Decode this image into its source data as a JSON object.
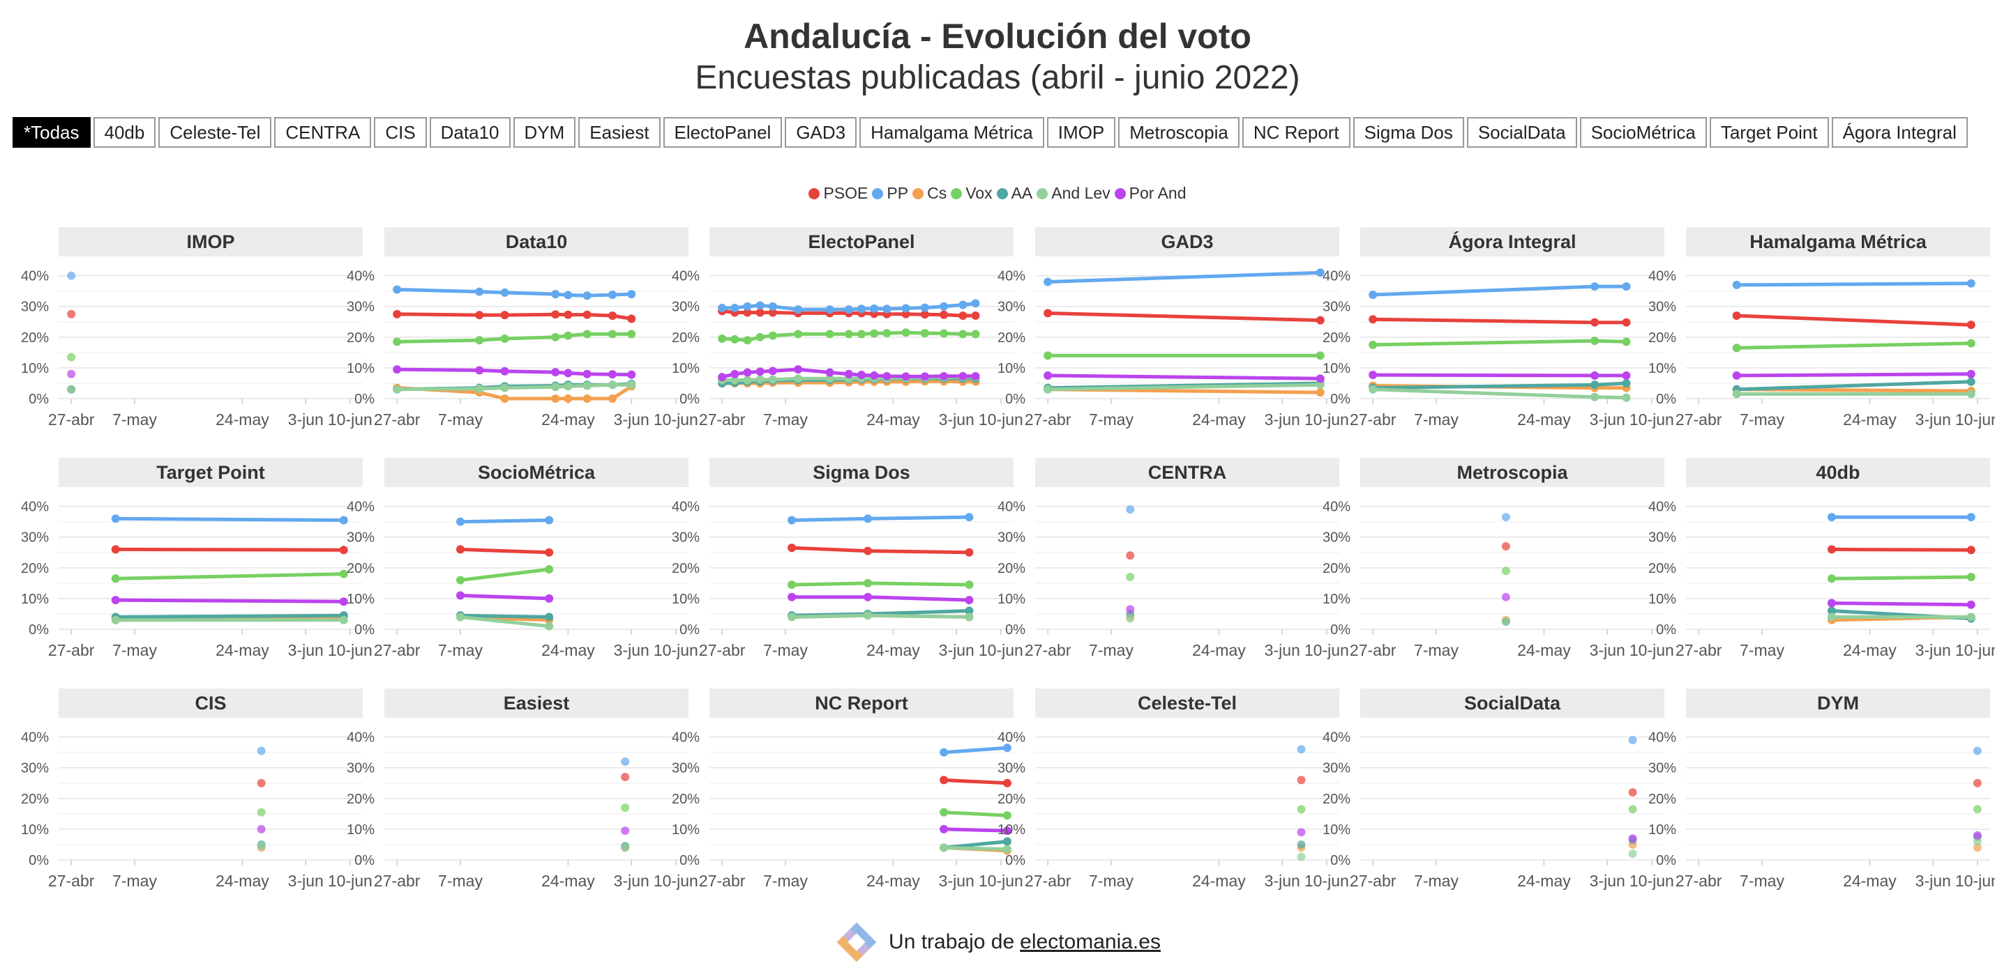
{
  "header": {
    "title": "Andalucía - Evolución del voto",
    "subtitle": "Encuestas publicadas (abril - junio 2022)"
  },
  "filters": [
    "*Todas",
    "40db",
    "Celeste-Tel",
    "CENTRA",
    "CIS",
    "Data10",
    "DYM",
    "Easiest",
    "ElectoPanel",
    "GAD3",
    "Hamalgama Métrica",
    "IMOP",
    "Metroscopia",
    "NC Report",
    "Sigma Dos",
    "SocialData",
    "SocioMétrica",
    "Target Point",
    "Ágora Integral"
  ],
  "active_filter": "*Todas",
  "footer": {
    "text": "Un trabajo de",
    "link": "electomania.es"
  },
  "chart_data": {
    "type": "line",
    "facets": "small multiples, 6 columns × 3 rows",
    "grid": true,
    "legend_position": "top-center",
    "x_ticks": [
      "27-abr",
      "7-may",
      "24-may",
      "3-jun",
      "10-jun"
    ],
    "x_tick_days": [
      0,
      10,
      27,
      37,
      44
    ],
    "y_ticks": [
      "0%",
      "10%",
      "20%",
      "30%",
      "40%"
    ],
    "ylim": [
      0,
      44
    ],
    "series": [
      {
        "name": "PSOE",
        "color": "#e8413c"
      },
      {
        "name": "PP",
        "color": "#62a8ee"
      },
      {
        "name": "Cs",
        "color": "#f3a04e"
      },
      {
        "name": "Vox",
        "color": "#77d062"
      },
      {
        "name": "AA",
        "color": "#4fa7a1"
      },
      {
        "name": "And Lev",
        "color": "#93cf9b"
      },
      {
        "name": "Por And",
        "color": "#bb44ee"
      }
    ],
    "panels": [
      {
        "pollster": "IMOP",
        "dates": [
          0
        ],
        "values": {
          "PSOE": [
            27.5
          ],
          "PP": [
            40
          ],
          "Cs": [
            3
          ],
          "Vox": [
            13.5
          ],
          "AA": [
            3
          ],
          "And Lev": [
            3
          ],
          "Por And": [
            8
          ]
        }
      },
      {
        "pollster": "Data10",
        "dates": [
          0,
          13,
          17,
          25,
          27,
          30,
          34,
          37
        ],
        "values": {
          "PSOE": [
            27.5,
            27.2,
            27.2,
            27.4,
            27.3,
            27.3,
            27.0,
            26.0
          ],
          "PP": [
            35.5,
            34.8,
            34.5,
            34.0,
            33.7,
            33.5,
            33.8,
            34.0
          ],
          "Cs": [
            3.5,
            2,
            0,
            0,
            0,
            0,
            0,
            4
          ],
          "Vox": [
            18.5,
            19,
            19.5,
            20,
            20.5,
            21,
            21,
            21
          ],
          "AA": [
            3,
            3.5,
            4,
            4.2,
            4.5,
            4.5,
            4.5,
            4.8
          ],
          "And Lev": [
            3,
            3.2,
            3.5,
            3.8,
            4,
            4.2,
            4.5,
            4.5
          ],
          "Por And": [
            9.5,
            9.2,
            8.9,
            8.6,
            8.3,
            8,
            7.9,
            7.8
          ]
        }
      },
      {
        "pollster": "ElectoPanel",
        "dates": [
          0,
          2,
          4,
          6,
          8,
          12,
          17,
          20,
          22,
          24,
          26,
          29,
          32,
          35,
          38,
          40
        ],
        "values": {
          "PSOE": [
            28.5,
            28,
            28,
            28,
            28,
            27.8,
            27.8,
            27.8,
            27.8,
            27.6,
            27.5,
            27.5,
            27.4,
            27.3,
            27,
            27
          ],
          "PP": [
            29.5,
            29.5,
            30,
            30.3,
            30,
            29,
            29,
            29,
            29.2,
            29.3,
            29.2,
            29.4,
            29.6,
            30,
            30.5,
            31
          ],
          "Cs": [
            5,
            5,
            5,
            5,
            5.2,
            5.2,
            5.2,
            5.3,
            5.5,
            5.5,
            5.5,
            5.5,
            5.6,
            5.6,
            5.5,
            5.5
          ],
          "Vox": [
            19.5,
            19.3,
            19,
            20,
            20.5,
            21,
            21,
            21,
            21,
            21.2,
            21.3,
            21.5,
            21.3,
            21.2,
            21,
            21
          ],
          "AA": [
            5,
            5.2,
            5.5,
            5.6,
            5.8,
            6,
            6,
            6.2,
            6.3,
            6.3,
            6.4,
            6.5,
            6.5,
            6.5,
            6.5,
            6.5
          ],
          "And Lev": [
            6,
            6,
            6,
            6.2,
            6.2,
            6.5,
            6.5,
            6.5,
            6.6,
            6.6,
            6.6,
            6.7,
            6.8,
            6.9,
            7,
            7
          ],
          "Por And": [
            7,
            8,
            8.5,
            8.8,
            9,
            9.5,
            8.5,
            8,
            7.7,
            7.5,
            7.3,
            7.2,
            7.2,
            7.3,
            7.3,
            7.3
          ]
        }
      },
      {
        "pollster": "GAD3",
        "dates": [
          0,
          43
        ],
        "values": {
          "PSOE": [
            27.8,
            25.5
          ],
          "PP": [
            38,
            41
          ],
          "Cs": [
            3,
            2
          ],
          "Vox": [
            14,
            14
          ],
          "AA": [
            3.5,
            5
          ],
          "And Lev": [
            3,
            4.5
          ],
          "Por And": [
            7.5,
            6.5
          ]
        }
      },
      {
        "pollster": "Ágora Integral",
        "dates": [
          0,
          35,
          40
        ],
        "values": {
          "PSOE": [
            25.8,
            24.8,
            24.8
          ],
          "PP": [
            33.8,
            36.5,
            36.5
          ],
          "Cs": [
            4.2,
            3.5,
            3.5
          ],
          "Vox": [
            17.5,
            18.8,
            18.5
          ],
          "AA": [
            3.5,
            4.5,
            5
          ],
          "And Lev": [
            3,
            0.5,
            0.3
          ],
          "Por And": [
            7.7,
            7.5,
            7.5
          ]
        }
      },
      {
        "pollster": "Hamalgama Métrica",
        "dates": [
          6,
          43
        ],
        "values": {
          "PSOE": [
            27,
            24
          ],
          "PP": [
            37,
            37.5
          ],
          "Cs": [
            3,
            2.5
          ],
          "Vox": [
            16.5,
            18
          ],
          "AA": [
            3,
            5.5
          ],
          "And Lev": [
            1.5,
            1.5
          ],
          "Por And": [
            7.5,
            8
          ]
        }
      },
      {
        "pollster": "Target Point",
        "dates": [
          7,
          43
        ],
        "values": {
          "PSOE": [
            26,
            25.8
          ],
          "PP": [
            36,
            35.5
          ],
          "Cs": [
            3,
            3.8
          ],
          "Vox": [
            16.5,
            18
          ],
          "AA": [
            4,
            4.5
          ],
          "And Lev": [
            3,
            3
          ],
          "Por And": [
            9.5,
            9
          ]
        }
      },
      {
        "pollster": "SocioMétrica",
        "dates": [
          10,
          24
        ],
        "values": {
          "PSOE": [
            26,
            25
          ],
          "PP": [
            35,
            35.5
          ],
          "Cs": [
            4,
            3
          ],
          "Vox": [
            16,
            19.5
          ],
          "AA": [
            4.5,
            4
          ],
          "And Lev": [
            4,
            1
          ],
          "Por And": [
            11,
            10
          ]
        }
      },
      {
        "pollster": "Sigma Dos",
        "dates": [
          11,
          23,
          39
        ],
        "values": {
          "PSOE": [
            26.5,
            25.5,
            25
          ],
          "PP": [
            35.5,
            36,
            36.5
          ],
          "Cs": [
            4,
            4.5,
            4
          ],
          "Vox": [
            14.5,
            15,
            14.5
          ],
          "AA": [
            4.5,
            5,
            6
          ],
          "And Lev": [
            4,
            4.5,
            4
          ],
          "Por And": [
            10.5,
            10.5,
            9.5
          ]
        }
      },
      {
        "pollster": "CENTRA",
        "dates": [
          13
        ],
        "values": {
          "PSOE": [
            24
          ],
          "PP": [
            39
          ],
          "Cs": [
            4
          ],
          "Vox": [
            17
          ],
          "AA": [
            5
          ],
          "And Lev": [
            3.5
          ],
          "Por And": [
            6.5
          ]
        }
      },
      {
        "pollster": "Metroscopia",
        "dates": [
          21
        ],
        "values": {
          "PSOE": [
            27
          ],
          "PP": [
            36.5
          ],
          "Cs": [
            3
          ],
          "Vox": [
            19
          ],
          "AA": [
            2.5
          ],
          "And Lev": [
            2.5
          ],
          "Por And": [
            10.5
          ]
        }
      },
      {
        "pollster": "40db",
        "dates": [
          21,
          43
        ],
        "values": {
          "PSOE": [
            26,
            25.8
          ],
          "PP": [
            36.5,
            36.5
          ],
          "Cs": [
            3,
            4
          ],
          "Vox": [
            16.5,
            17
          ],
          "AA": [
            6,
            3.5
          ],
          "And Lev": [
            4,
            4
          ],
          "Por And": [
            8.5,
            8
          ]
        }
      },
      {
        "pollster": "CIS",
        "dates": [
          30
        ],
        "values": {
          "PSOE": [
            25
          ],
          "PP": [
            35.5
          ],
          "Cs": [
            4
          ],
          "Vox": [
            15.5
          ],
          "AA": [
            5
          ],
          "And Lev": [
            4.5
          ],
          "Por And": [
            10
          ]
        }
      },
      {
        "pollster": "Easiest",
        "dates": [
          36
        ],
        "values": {
          "PSOE": [
            27
          ],
          "PP": [
            32
          ],
          "Cs": [
            4
          ],
          "Vox": [
            17
          ],
          "AA": [
            4.5
          ],
          "And Lev": [
            4
          ],
          "Por And": [
            9.5
          ]
        }
      },
      {
        "pollster": "NC Report",
        "dates": [
          35,
          45
        ],
        "values": {
          "PSOE": [
            26,
            25
          ],
          "PP": [
            35,
            36.5
          ],
          "Cs": [
            4,
            3
          ],
          "Vox": [
            15.5,
            14.5
          ],
          "AA": [
            4,
            6
          ],
          "And Lev": [
            4,
            3.5
          ],
          "Por And": [
            10,
            9.5
          ]
        }
      },
      {
        "pollster": "Celeste-Tel",
        "dates": [
          40
        ],
        "values": {
          "PSOE": [
            26
          ],
          "PP": [
            36
          ],
          "Cs": [
            4
          ],
          "Vox": [
            16.5
          ],
          "AA": [
            5
          ],
          "And Lev": [
            1
          ],
          "Por And": [
            9
          ]
        }
      },
      {
        "pollster": "SocialData",
        "dates": [
          41
        ],
        "values": {
          "PSOE": [
            22
          ],
          "PP": [
            39
          ],
          "Cs": [
            5
          ],
          "Vox": [
            16.5
          ],
          "AA": [
            6.5
          ],
          "And Lev": [
            2
          ],
          "Por And": [
            7
          ]
        }
      },
      {
        "pollster": "DYM",
        "dates": [
          44
        ],
        "values": {
          "PSOE": [
            25
          ],
          "PP": [
            35.5
          ],
          "Cs": [
            4
          ],
          "Vox": [
            16.5
          ],
          "AA": [
            7.5
          ],
          "And Lev": [
            6
          ],
          "Por And": [
            8
          ]
        }
      }
    ]
  }
}
